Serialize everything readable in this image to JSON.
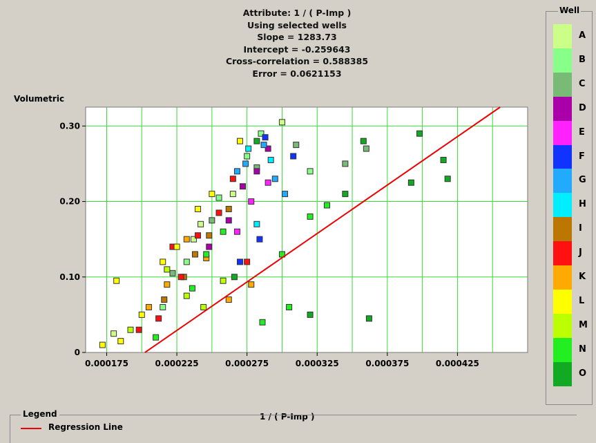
{
  "stats": {
    "attribute": "Attribute: 1 / ( P-Imp )",
    "selection": "Using selected wells",
    "slope": "Slope = 1283.73",
    "intercept": "Intercept = -0.259643",
    "correlation": "Cross-correlation = 0.588385",
    "error": "Error = 0.0621153"
  },
  "wells": {
    "title": "Well",
    "items": [
      {
        "label": "A",
        "color": "#ccff88"
      },
      {
        "label": "B",
        "color": "#88ff88"
      },
      {
        "label": "C",
        "color": "#77bb77"
      },
      {
        "label": "D",
        "color": "#aa00aa"
      },
      {
        "label": "E",
        "color": "#ff22ff"
      },
      {
        "label": "F",
        "color": "#1133ff"
      },
      {
        "label": "G",
        "color": "#22aaff"
      },
      {
        "label": "H",
        "color": "#00eeff"
      },
      {
        "label": "I",
        "color": "#bb7700"
      },
      {
        "label": "J",
        "color": "#ff1111"
      },
      {
        "label": "K",
        "color": "#ffaa00"
      },
      {
        "label": "L",
        "color": "#ffff00"
      },
      {
        "label": "M",
        "color": "#bbff00"
      },
      {
        "label": "N",
        "color": "#22ee22"
      },
      {
        "label": "O",
        "color": "#11aa22"
      }
    ]
  },
  "legend": {
    "title": "Legend",
    "regression_label": "Regression Line",
    "regression_color": "#ee0000"
  },
  "chart_data": {
    "type": "scatter",
    "xlabel": "1 / ( P-Imp )",
    "ylabel": "Volumetric",
    "xlim": [
      0.00016,
      0.000475
    ],
    "ylim": [
      0,
      0.325
    ],
    "x_ticks": [
      0.000175,
      0.000225,
      0.000275,
      0.000325,
      0.000375,
      0.000425
    ],
    "x_tick_labels": [
      "0.000175",
      "0.000225",
      "0.000275",
      "0.000325",
      "0.000375",
      "0.000425"
    ],
    "y_ticks": [
      0,
      0.1,
      0.2,
      0.3
    ],
    "y_tick_labels": [
      "0",
      "0.10",
      "0.20",
      "0.30"
    ],
    "grid": true,
    "regression": {
      "slope": 1283.73,
      "intercept": -0.259643
    },
    "series": [
      {
        "well": "A",
        "points": [
          [
            0.0003,
            0.305
          ],
          [
            0.000265,
            0.21
          ],
          [
            0.000237,
            0.15
          ],
          [
            0.00018,
            0.025
          ],
          [
            0.000242,
            0.17
          ]
        ]
      },
      {
        "well": "B",
        "points": [
          [
            0.000285,
            0.29
          ],
          [
            0.000255,
            0.205
          ],
          [
            0.000232,
            0.12
          ],
          [
            0.000215,
            0.06
          ],
          [
            0.00032,
            0.24
          ],
          [
            0.000275,
            0.26
          ]
        ]
      },
      {
        "well": "C",
        "points": [
          [
            0.00031,
            0.275
          ],
          [
            0.000282,
            0.245
          ],
          [
            0.00025,
            0.175
          ],
          [
            0.000222,
            0.105
          ],
          [
            0.000345,
            0.25
          ],
          [
            0.00036,
            0.27
          ]
        ]
      },
      {
        "well": "D",
        "points": [
          [
            0.000282,
            0.24
          ],
          [
            0.000272,
            0.22
          ],
          [
            0.000262,
            0.175
          ],
          [
            0.000248,
            0.14
          ],
          [
            0.00029,
            0.27
          ]
        ]
      },
      {
        "well": "E",
        "points": [
          [
            0.00029,
            0.225
          ],
          [
            0.000278,
            0.2
          ],
          [
            0.000268,
            0.16
          ]
        ]
      },
      {
        "well": "F",
        "points": [
          [
            0.000288,
            0.285
          ],
          [
            0.000308,
            0.26
          ],
          [
            0.000284,
            0.15
          ],
          [
            0.00027,
            0.12
          ]
        ]
      },
      {
        "well": "G",
        "points": [
          [
            0.000287,
            0.275
          ],
          [
            0.000274,
            0.25
          ],
          [
            0.000295,
            0.23
          ],
          [
            0.000302,
            0.21
          ],
          [
            0.000268,
            0.24
          ]
        ]
      },
      {
        "well": "H",
        "points": [
          [
            0.000276,
            0.27
          ],
          [
            0.000292,
            0.255
          ],
          [
            0.000282,
            0.17
          ]
        ]
      },
      {
        "well": "I",
        "points": [
          [
            0.000262,
            0.19
          ],
          [
            0.000248,
            0.155
          ],
          [
            0.00023,
            0.1
          ],
          [
            0.000216,
            0.07
          ],
          [
            0.000238,
            0.13
          ]
        ]
      },
      {
        "well": "J",
        "points": [
          [
            0.00024,
            0.155
          ],
          [
            0.000255,
            0.185
          ],
          [
            0.000228,
            0.1
          ],
          [
            0.000212,
            0.045
          ],
          [
            0.000265,
            0.23
          ],
          [
            0.000275,
            0.12
          ],
          [
            0.000222,
            0.14
          ],
          [
            0.000198,
            0.03
          ]
        ]
      },
      {
        "well": "K",
        "points": [
          [
            0.000232,
            0.15
          ],
          [
            0.000218,
            0.09
          ],
          [
            0.000246,
            0.125
          ],
          [
            0.000205,
            0.06
          ],
          [
            0.000262,
            0.07
          ],
          [
            0.000278,
            0.09
          ]
        ]
      },
      {
        "well": "L",
        "points": [
          [
            0.000225,
            0.14
          ],
          [
            0.00024,
            0.19
          ],
          [
            0.0002,
            0.05
          ],
          [
            0.000185,
            0.015
          ],
          [
            0.00027,
            0.28
          ],
          [
            0.000182,
            0.095
          ],
          [
            0.000172,
            0.01
          ],
          [
            0.000215,
            0.12
          ],
          [
            0.00025,
            0.21
          ]
        ]
      },
      {
        "well": "M",
        "points": [
          [
            0.000218,
            0.11
          ],
          [
            0.000232,
            0.075
          ],
          [
            0.000258,
            0.095
          ],
          [
            0.000192,
            0.03
          ],
          [
            0.000244,
            0.06
          ]
        ]
      },
      {
        "well": "N",
        "points": [
          [
            0.000246,
            0.13
          ],
          [
            0.000258,
            0.16
          ],
          [
            0.000236,
            0.085
          ],
          [
            0.0003,
            0.13
          ],
          [
            0.00032,
            0.18
          ],
          [
            0.000332,
            0.195
          ],
          [
            0.000305,
            0.06
          ],
          [
            0.00021,
            0.02
          ],
          [
            0.000286,
            0.04
          ]
        ]
      },
      {
        "well": "O",
        "points": [
          [
            0.000398,
            0.29
          ],
          [
            0.000392,
            0.225
          ],
          [
            0.000418,
            0.23
          ],
          [
            0.000415,
            0.255
          ],
          [
            0.000358,
            0.28
          ],
          [
            0.000345,
            0.21
          ],
          [
            0.00032,
            0.05
          ],
          [
            0.000362,
            0.045
          ],
          [
            0.000282,
            0.28
          ],
          [
            0.000266,
            0.1
          ]
        ]
      }
    ]
  }
}
